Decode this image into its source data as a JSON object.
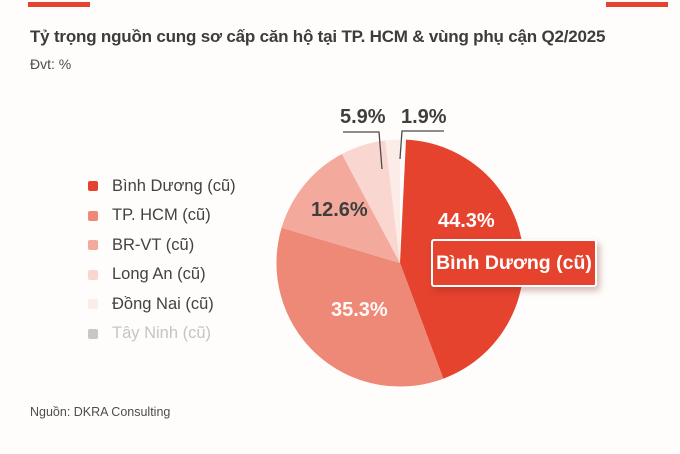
{
  "page": {
    "background": "#fffdfb",
    "accent_red": "#e6432f"
  },
  "header": {
    "unit_label": "Đvt: %"
  },
  "chart_data": {
    "type": "pie",
    "title": "Tỷ trọng nguồn cung sơ cấp căn hộ tại TP. HCM & vùng phụ cận Q2/2025",
    "unit": "%",
    "labels": [
      "Bình Dương (cũ)",
      "TP. HCM (cũ)",
      "BR-VT (cũ)",
      "Long An (cũ)",
      "Đồng Nai (cũ)",
      "Tây Ninh (cũ)"
    ],
    "values": [
      44.3,
      35.3,
      12.6,
      5.9,
      1.9,
      0
    ],
    "colors": [
      "#e6432f",
      "#ee8877",
      "#f3a99b",
      "#f9d7d0",
      "#fcece8",
      "#c9c6c3"
    ],
    "value_labels": [
      "44.3%",
      "35.3%",
      "12.6%",
      "5.9%",
      "1.9%"
    ],
    "start_angle_deg": 0,
    "clockwise": true,
    "first_slice_gap_deg": 2.8,
    "legend_position": "left",
    "highlight": {
      "label": "Bình Dương (cũ)",
      "value": 44.3
    }
  },
  "source": {
    "text": "Nguồn: DKRA Consulting"
  }
}
